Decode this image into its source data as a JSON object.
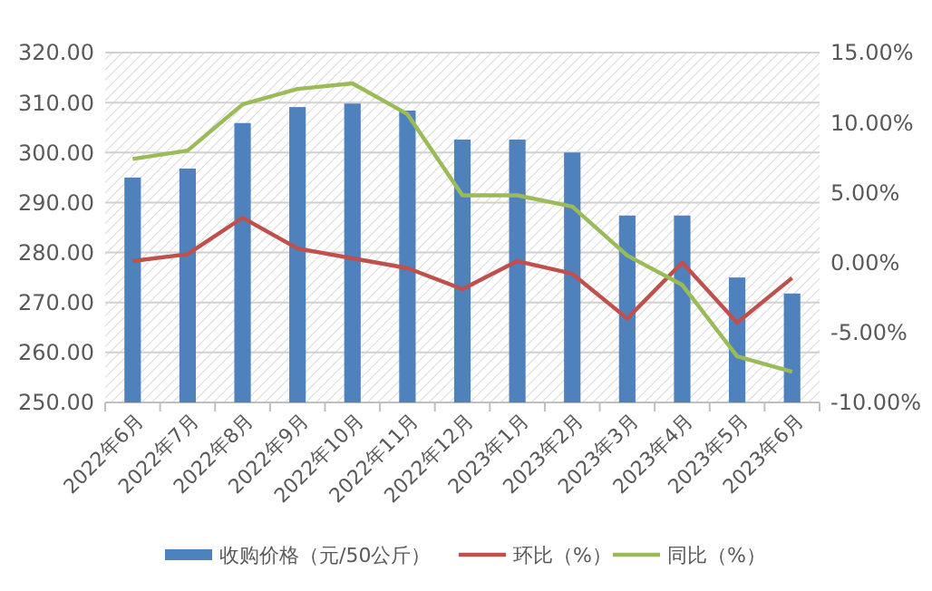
{
  "chart_data": {
    "type": "bar",
    "categories": [
      "2022年6月",
      "2022年7月",
      "2022年8月",
      "2022年9月",
      "2022年10月",
      "2022年11月",
      "2022年12月",
      "2023年1月",
      "2023年2月",
      "2023年3月",
      "2023年4月",
      "2023年5月",
      "2023年6月"
    ],
    "series": [
      {
        "name": "收购价格（元/50公斤）",
        "color": "#4f81bd",
        "values": [
          295.0,
          296.8,
          305.9,
          309.1,
          309.8,
          308.4,
          302.6,
          302.6,
          300.0,
          287.4,
          287.4,
          275.0,
          271.8
        ]
      },
      {
        "name": "环比（%）",
        "color": "#c0504d",
        "type": "line",
        "axis": "y2",
        "values": [
          0.1,
          0.6,
          3.2,
          1.0,
          0.3,
          -0.4,
          -1.9,
          0.1,
          -0.8,
          -4.0,
          0.0,
          -4.3,
          -1.1
        ]
      },
      {
        "name": "同比（%）",
        "color": "#9bbb59",
        "type": "line",
        "axis": "y2",
        "values": [
          7.4,
          8.0,
          11.3,
          12.4,
          12.8,
          10.6,
          4.8,
          4.8,
          4.0,
          0.5,
          -1.6,
          -6.7,
          -7.8
        ]
      }
    ],
    "ylim": [
      250,
      320
    ],
    "yticks": [
      {
        "value": 250,
        "label": "250.00"
      },
      {
        "value": 260,
        "label": "260.00"
      },
      {
        "value": 270,
        "label": "270.00"
      },
      {
        "value": 280,
        "label": "280.00"
      },
      {
        "value": 290,
        "label": "290.00"
      },
      {
        "value": 300,
        "label": "300.00"
      },
      {
        "value": 310,
        "label": "310.00"
      },
      {
        "value": 320,
        "label": "320.00"
      }
    ],
    "y2lim": [
      -10,
      15
    ],
    "y2ticks": [
      {
        "value": -10,
        "label": "-10.00%"
      },
      {
        "value": -5,
        "label": "-5.00%"
      },
      {
        "value": 0,
        "label": "0.00%"
      },
      {
        "value": 5,
        "label": "5.00%"
      },
      {
        "value": 10,
        "label": "10.00%"
      },
      {
        "value": 15,
        "label": "15.00%"
      }
    ],
    "grid": "y",
    "legend": "bottom",
    "marker": "none",
    "line_style": "solid"
  }
}
